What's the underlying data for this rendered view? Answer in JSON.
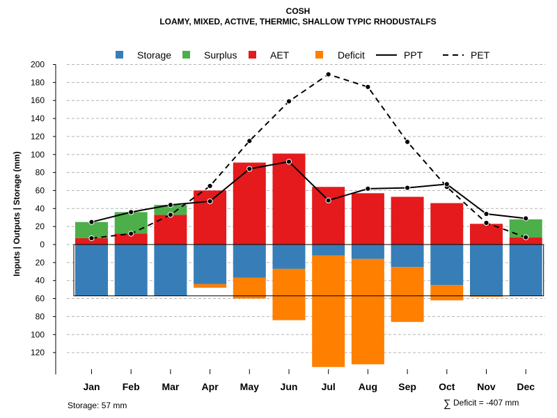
{
  "chart_data": {
    "type": "bar",
    "title": "COSH",
    "subtitle": "LOAMY, MIXED, ACTIVE, THERMIC, SHALLOW TYPIC RHODUSTALFS",
    "ylabel": "Inputs | Outputs | Storage    (mm)",
    "categories": [
      "Jan",
      "Feb",
      "Mar",
      "Apr",
      "May",
      "Jun",
      "Jul",
      "Aug",
      "Sep",
      "Oct",
      "Nov",
      "Dec"
    ],
    "ylim": [
      -135,
      200
    ],
    "yticks": [
      200,
      180,
      160,
      140,
      120,
      100,
      80,
      60,
      40,
      20,
      0,
      -20,
      -40,
      -60,
      -80,
      -100,
      -120
    ],
    "ytick_labels": [
      "200",
      "180",
      "160",
      "140",
      "120",
      "100",
      "80",
      "60",
      "40",
      "20",
      "0",
      "20",
      "40",
      "60",
      "80",
      "100",
      "120"
    ],
    "grid": true,
    "legend_position": "top",
    "legend": [
      {
        "name": "Storage",
        "kind": "box",
        "color": "#377EB8"
      },
      {
        "name": "Surplus",
        "kind": "box",
        "color": "#4DAF4A"
      },
      {
        "name": "AET",
        "kind": "box",
        "color": "#E41A1C"
      },
      {
        "name": "Deficit",
        "kind": "box",
        "color": "#FF7F00"
      },
      {
        "name": "PPT",
        "kind": "solid-line",
        "color": "#000000"
      },
      {
        "name": "PET",
        "kind": "dashed-line",
        "color": "#000000"
      }
    ],
    "series": {
      "aet": {
        "name": "AET",
        "color": "#E41A1C",
        "values": [
          7,
          12,
          33,
          60,
          91,
          101,
          64,
          57,
          53,
          46,
          23,
          8
        ]
      },
      "surplus": {
        "name": "Surplus",
        "color": "#4DAF4A",
        "values": [
          18,
          24,
          11,
          0,
          0,
          0,
          0,
          0,
          0,
          0,
          0,
          20
        ]
      },
      "storage": {
        "name": "Storage",
        "color": "#377EB8",
        "values": [
          57,
          57,
          57,
          44,
          37,
          27,
          12,
          16,
          25,
          45,
          57,
          57
        ]
      },
      "deficit": {
        "name": "Deficit",
        "color": "#FF7F00",
        "values": [
          0,
          0,
          0,
          4,
          23,
          57,
          124,
          117,
          61,
          17,
          1,
          0
        ]
      },
      "ppt": {
        "name": "PPT",
        "color": "#000000",
        "values": [
          25,
          36,
          44,
          48,
          84,
          92,
          49,
          62,
          63,
          67,
          34,
          29
        ]
      },
      "pet": {
        "name": "PET",
        "color": "#000000",
        "values": [
          7,
          12,
          33,
          65,
          115,
          159,
          189,
          175,
          114,
          64,
          24,
          8
        ]
      }
    },
    "storage_capacity": 57
  },
  "footer": {
    "storage_note": "Storage: 57 mm",
    "sigma_symbol": "∑",
    "deficit_note": "Deficit = -407 mm"
  }
}
